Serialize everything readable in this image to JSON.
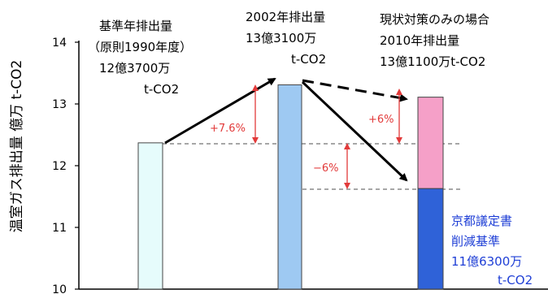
{
  "chart_data": {
    "type": "bar",
    "ylabel": "温室ガス排出量 億万 t-CO2",
    "ylim": [
      10,
      14
    ],
    "yticks": [
      "10",
      "11",
      "12",
      "13",
      "14"
    ],
    "grid": false,
    "bars": [
      {
        "name": "基準年",
        "value": 12.37,
        "color": "#e6fcfc"
      },
      {
        "name": "2002年",
        "value": 13.31,
        "color": "#9ec9f2"
      },
      {
        "name": "2010年 京都議定書削減基準",
        "value": 11.63,
        "color": "#2f62d8"
      },
      {
        "name": "2010年 現状対策のみ (超過分)",
        "value": 13.11,
        "color": "#f5a0c8"
      }
    ],
    "annotations": {
      "base": [
        "基準年排出量",
        "（原則1990年度）",
        "12億3700万",
        "t-CO2"
      ],
      "y2002": [
        "2002年排出量",
        "13億3100万",
        "t-CO2"
      ],
      "y2010": [
        "現状対策のみの場合",
        "2010年排出量",
        "13億1100万t-CO2"
      ],
      "kyoto": [
        "京都議定書",
        "削減基準",
        "11億6300万",
        "t-CO2"
      ],
      "pct_up": "+7.6%",
      "pct_plus6": "+6%",
      "pct_minus6": "−6%"
    }
  }
}
